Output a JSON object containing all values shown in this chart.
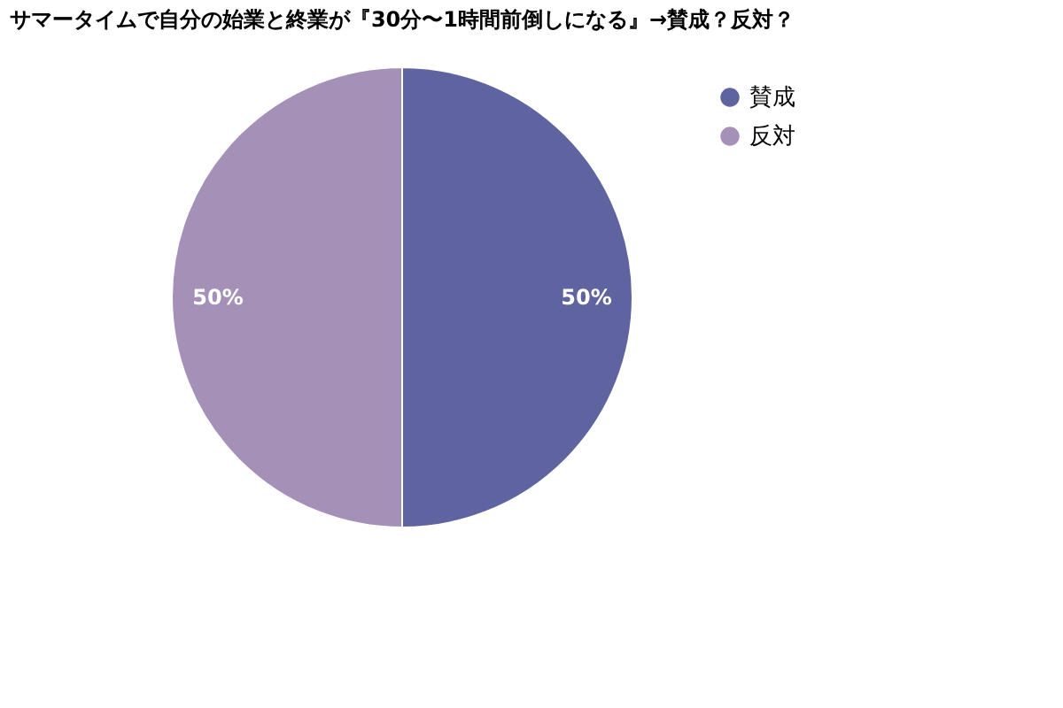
{
  "chart_data": {
    "type": "pie",
    "title": "サマータイムで自分の始業と終業が『30分〜1時間前倒しになる』→賛成？反対？",
    "categories": [
      "賛成",
      "反対"
    ],
    "values": [
      50,
      50
    ],
    "colors": [
      "#5f64a0",
      "#a590b8"
    ],
    "value_labels": [
      "50%",
      "50%"
    ],
    "legend": "right"
  }
}
